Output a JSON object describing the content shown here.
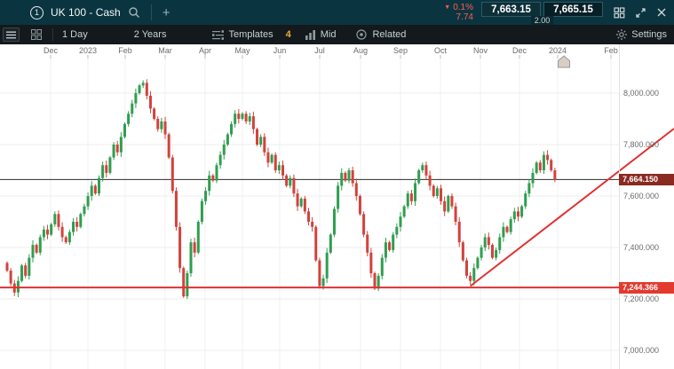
{
  "topbar": {
    "chart_badge": "1",
    "instrument": "UK 100 - Cash",
    "add_tab": "+",
    "change_pct": "0.1%",
    "change_points": "7.74",
    "sell_price": "7,663.15",
    "buy_price": "7,665.15",
    "spread": "2.00"
  },
  "toolbar": {
    "interval": "1 Day",
    "range": "2 Years",
    "templates": "Templates",
    "badge": "4",
    "mid": "Mid",
    "related": "Related",
    "settings": "Settings"
  },
  "colors": {
    "change_red": "#ff5c52",
    "badge_yellow": "#eca93b",
    "candle_up": "#2f9e4f",
    "candle_down": "#d2423c",
    "drawing_red": "#e03131",
    "current_tag_bg": "#8a2a21",
    "support_tag_bg": "#e23a2e"
  },
  "chart_data": {
    "type": "candlestick",
    "title": "UK 100 - Cash, 1 Day",
    "x_labels": [
      "Dec",
      "2023",
      "Feb",
      "Mar",
      "Apr",
      "May",
      "Jun",
      "Jul",
      "Aug",
      "Sep",
      "Oct",
      "Nov",
      "Dec",
      "2024",
      "Feb"
    ],
    "y_axis": [
      {
        "text": "8,000.000",
        "value": 8000
      },
      {
        "text": "7,800.000",
        "value": 7800
      },
      {
        "text": "7,600.000",
        "value": 7600
      },
      {
        "text": "7,400.000",
        "value": 7400
      },
      {
        "text": "7,200.000",
        "value": 7200
      },
      {
        "text": "7,000.000",
        "value": 7000
      }
    ],
    "open_first": 7340,
    "closes": [
      7310,
      7260,
      7225,
      7270,
      7330,
      7290,
      7360,
      7410,
      7380,
      7440,
      7470,
      7450,
      7490,
      7530,
      7480,
      7440,
      7420,
      7460,
      7500,
      7480,
      7530,
      7560,
      7600,
      7640,
      7610,
      7670,
      7720,
      7690,
      7750,
      7800,
      7770,
      7830,
      7880,
      7920,
      7960,
      8000,
      8030,
      8040,
      7990,
      7940,
      7900,
      7860,
      7890,
      7840,
      7750,
      7620,
      7480,
      7320,
      7210,
      7300,
      7420,
      7380,
      7500,
      7580,
      7620,
      7680,
      7660,
      7720,
      7760,
      7800,
      7840,
      7880,
      7920,
      7900,
      7920,
      7890,
      7910,
      7860,
      7800,
      7830,
      7770,
      7730,
      7760,
      7700,
      7720,
      7680,
      7640,
      7670,
      7610,
      7560,
      7590,
      7540,
      7500,
      7480,
      7350,
      7250,
      7280,
      7380,
      7450,
      7550,
      7640,
      7690,
      7660,
      7700,
      7650,
      7600,
      7530,
      7450,
      7380,
      7300,
      7240,
      7290,
      7360,
      7420,
      7390,
      7450,
      7480,
      7520,
      7560,
      7610,
      7580,
      7650,
      7700,
      7720,
      7680,
      7640,
      7600,
      7630,
      7580,
      7540,
      7600,
      7560,
      7500,
      7420,
      7350,
      7290,
      7270,
      7320,
      7360,
      7400,
      7440,
      7410,
      7360,
      7390,
      7440,
      7480,
      7460,
      7510,
      7540,
      7520,
      7560,
      7610,
      7650,
      7690,
      7730,
      7700,
      7760,
      7740,
      7700,
      7664
    ],
    "levels": {
      "current_price": {
        "text": "7,664.150",
        "value": 7664.15
      },
      "support": {
        "text": "7,244.366",
        "value": 7244.366
      }
    },
    "trendline": {
      "start_index": 126,
      "start_price": 7250,
      "end_price": 7862
    }
  }
}
